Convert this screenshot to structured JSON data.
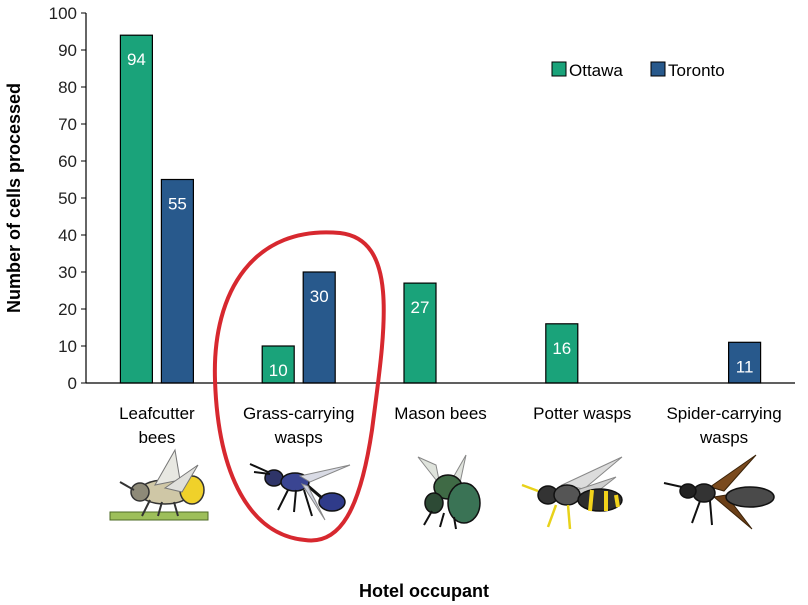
{
  "chart_data": {
    "type": "bar",
    "categories": [
      [
        "Leafcutter",
        "bees"
      ],
      [
        "Grass-carrying",
        "wasps"
      ],
      [
        "Mason bees"
      ],
      [
        "Potter wasps"
      ],
      [
        "Spider-carrying",
        "wasps"
      ]
    ],
    "series": [
      {
        "name": "Ottawa",
        "color": "#1aa37a",
        "values": [
          94,
          10,
          27,
          16,
          null
        ]
      },
      {
        "name": "Toronto",
        "color": "#28598c",
        "values": [
          55,
          30,
          null,
          null,
          11
        ]
      }
    ],
    "ylim": [
      0,
      100
    ],
    "yticks": [
      0,
      10,
      20,
      30,
      40,
      50,
      60,
      70,
      80,
      90,
      100
    ],
    "ylabel": "Number of cells processed",
    "xlabel": "Hotel occupant",
    "legend_position": "top-right",
    "grid": false,
    "highlight": {
      "category_index": 1,
      "shape": "hand-drawn ellipse",
      "color": "#d7282f"
    },
    "illustrations": [
      "leafcutter-bee-icon",
      "grass-carrying-wasp-icon",
      "mason-bee-icon",
      "potter-wasp-icon",
      "spider-carrying-wasp-icon"
    ]
  }
}
